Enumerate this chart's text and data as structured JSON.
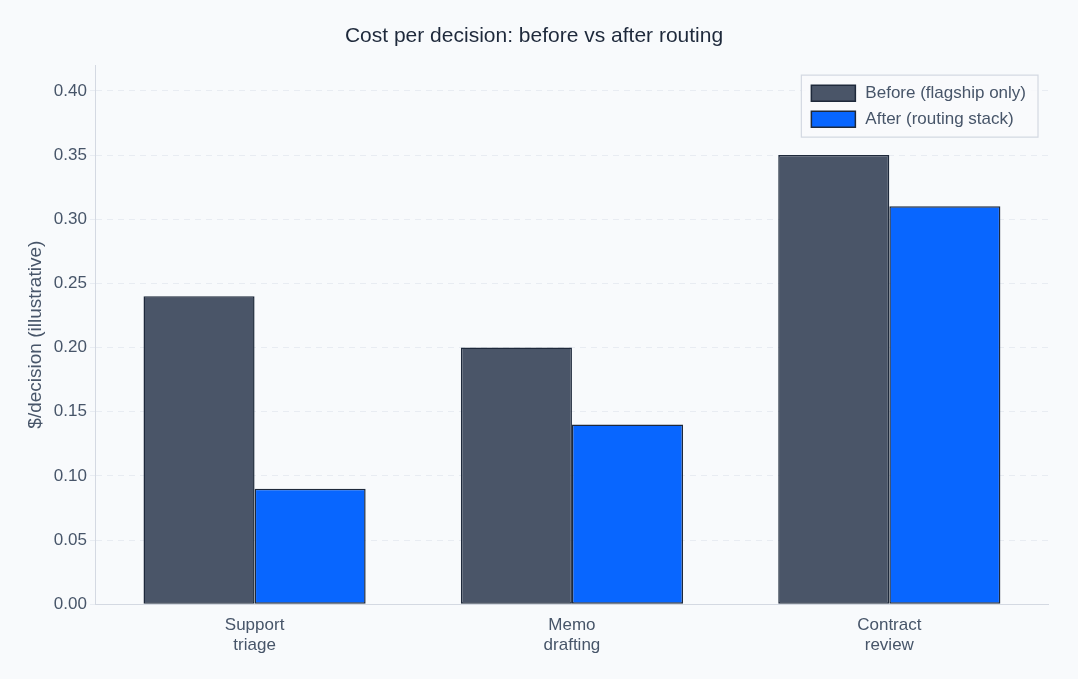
{
  "chart_data": {
    "type": "bar",
    "title": "Cost per decision: before vs after routing",
    "ylabel": "$/decision (illustrative)",
    "categories": [
      "Support\ntriage",
      "Memo\ndrafting",
      "Contract\nreview"
    ],
    "series": [
      {
        "name": "Before (flagship only)",
        "color": "#4a5568",
        "values": [
          0.24,
          0.2,
          0.35
        ]
      },
      {
        "name": "After (routing stack)",
        "color": "#0866ff",
        "values": [
          0.09,
          0.14,
          0.31
        ]
      }
    ],
    "ylim": [
      0,
      0.42
    ],
    "yticks": [
      {
        "value": 0,
        "label": "0.00"
      },
      {
        "value": 0.05,
        "label": "0.05"
      },
      {
        "value": 0.1,
        "label": "0.10"
      },
      {
        "value": 0.15,
        "label": "0.15"
      },
      {
        "value": 0.2,
        "label": "0.20"
      },
      {
        "value": 0.25,
        "label": "0.25"
      },
      {
        "value": 0.3,
        "label": "0.30"
      },
      {
        "value": 0.35,
        "label": "0.35"
      },
      {
        "value": 0.4,
        "label": "0.40"
      }
    ],
    "grid": "y",
    "legend": "top right"
  }
}
